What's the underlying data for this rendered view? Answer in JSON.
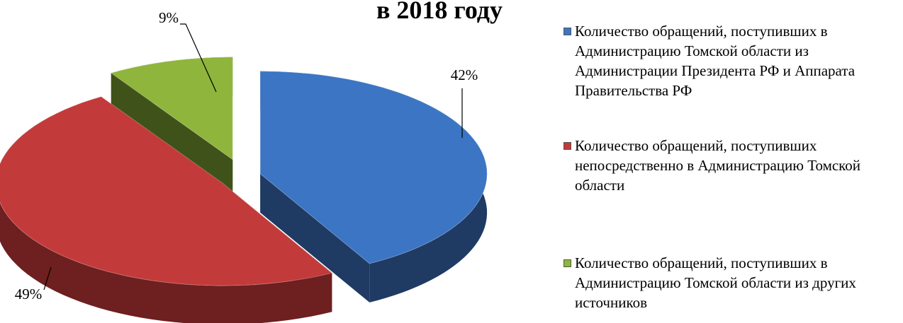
{
  "chart_data": {
    "type": "pie",
    "title": "в 2018 году",
    "categories": [
      "Количество обращений, поступивших в Администрацию Томской области из Администрации Президента РФ и Аппарата Правительства РФ",
      "Количество обращений, поступивших непосредственно в Администрацию Томской области",
      "Количество обращений, поступивших в Администрацию Томской области из других источников"
    ],
    "values": [
      42,
      49,
      9
    ],
    "value_labels": [
      "42%",
      "49%",
      "9%"
    ],
    "colors": [
      "#3b75c4",
      "#c33a3a",
      "#8fb53c"
    ],
    "side_colors": [
      "#1f3a63",
      "#6e1f1f",
      "#3f5219"
    ],
    "legend": "right"
  }
}
